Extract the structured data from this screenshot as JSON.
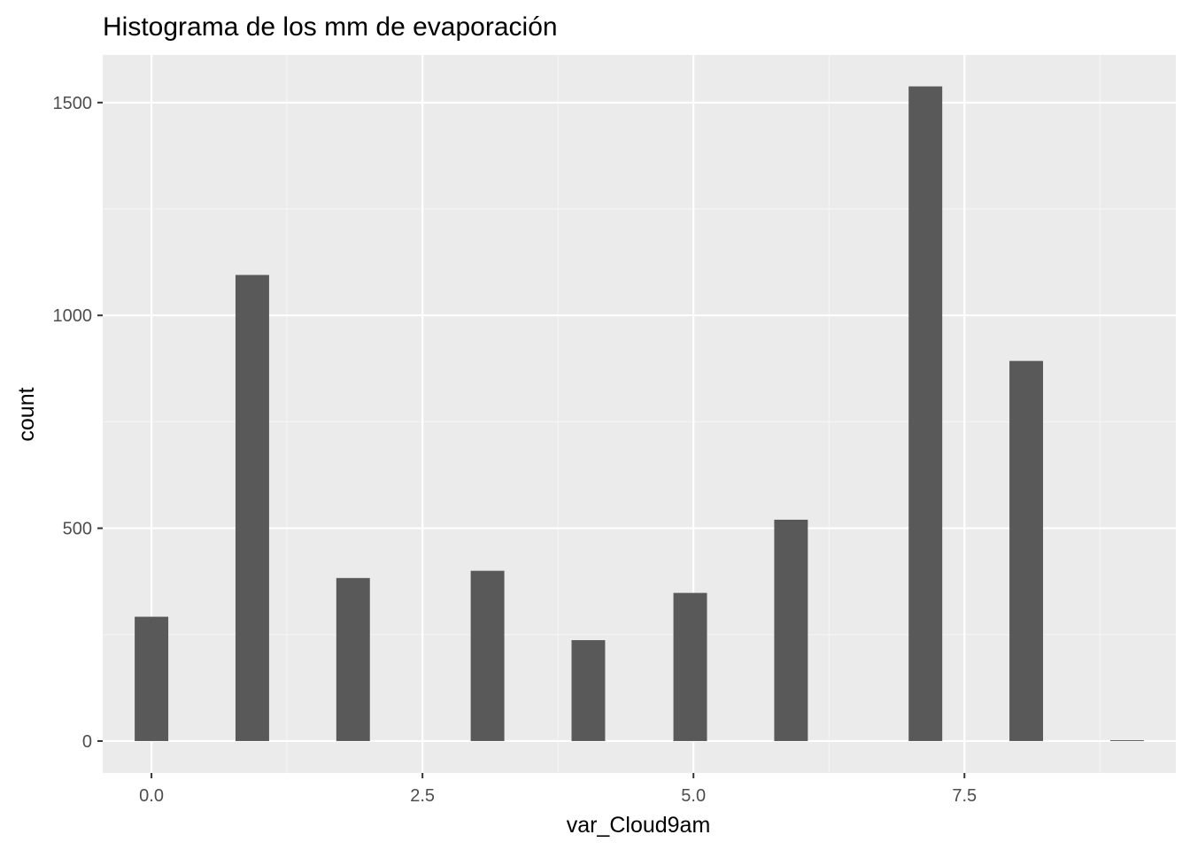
{
  "chart_data": {
    "type": "bar",
    "title": "Histograma de los mm de evaporación",
    "xlabel": "var_Cloud9am",
    "ylabel": "count",
    "xlim": [
      -0.45,
      9.45
    ],
    "ylim": [
      -75,
      1612
    ],
    "x_ticks": [
      0.0,
      2.5,
      5.0,
      7.5
    ],
    "x_tick_labels": [
      "0.0",
      "2.5",
      "5.0",
      "7.5"
    ],
    "y_ticks": [
      0,
      500,
      1000,
      1500
    ],
    "y_tick_labels": [
      "0",
      "500",
      "1000",
      "1500"
    ],
    "bin_width": 0.31,
    "bins": [
      {
        "x": 0.0,
        "count": 292
      },
      {
        "x": 0.93,
        "count": 1095
      },
      {
        "x": 1.86,
        "count": 383
      },
      {
        "x": 3.1,
        "count": 400
      },
      {
        "x": 4.03,
        "count": 237
      },
      {
        "x": 4.97,
        "count": 348
      },
      {
        "x": 5.9,
        "count": 520
      },
      {
        "x": 7.14,
        "count": 1538
      },
      {
        "x": 8.07,
        "count": 893
      },
      {
        "x": 9.0,
        "count": 2
      }
    ],
    "grid": true,
    "background": "#ebebeb",
    "bar_color": "#595959",
    "grid_major_color": "#ffffff",
    "grid_minor_color": "#f5f5f5"
  }
}
